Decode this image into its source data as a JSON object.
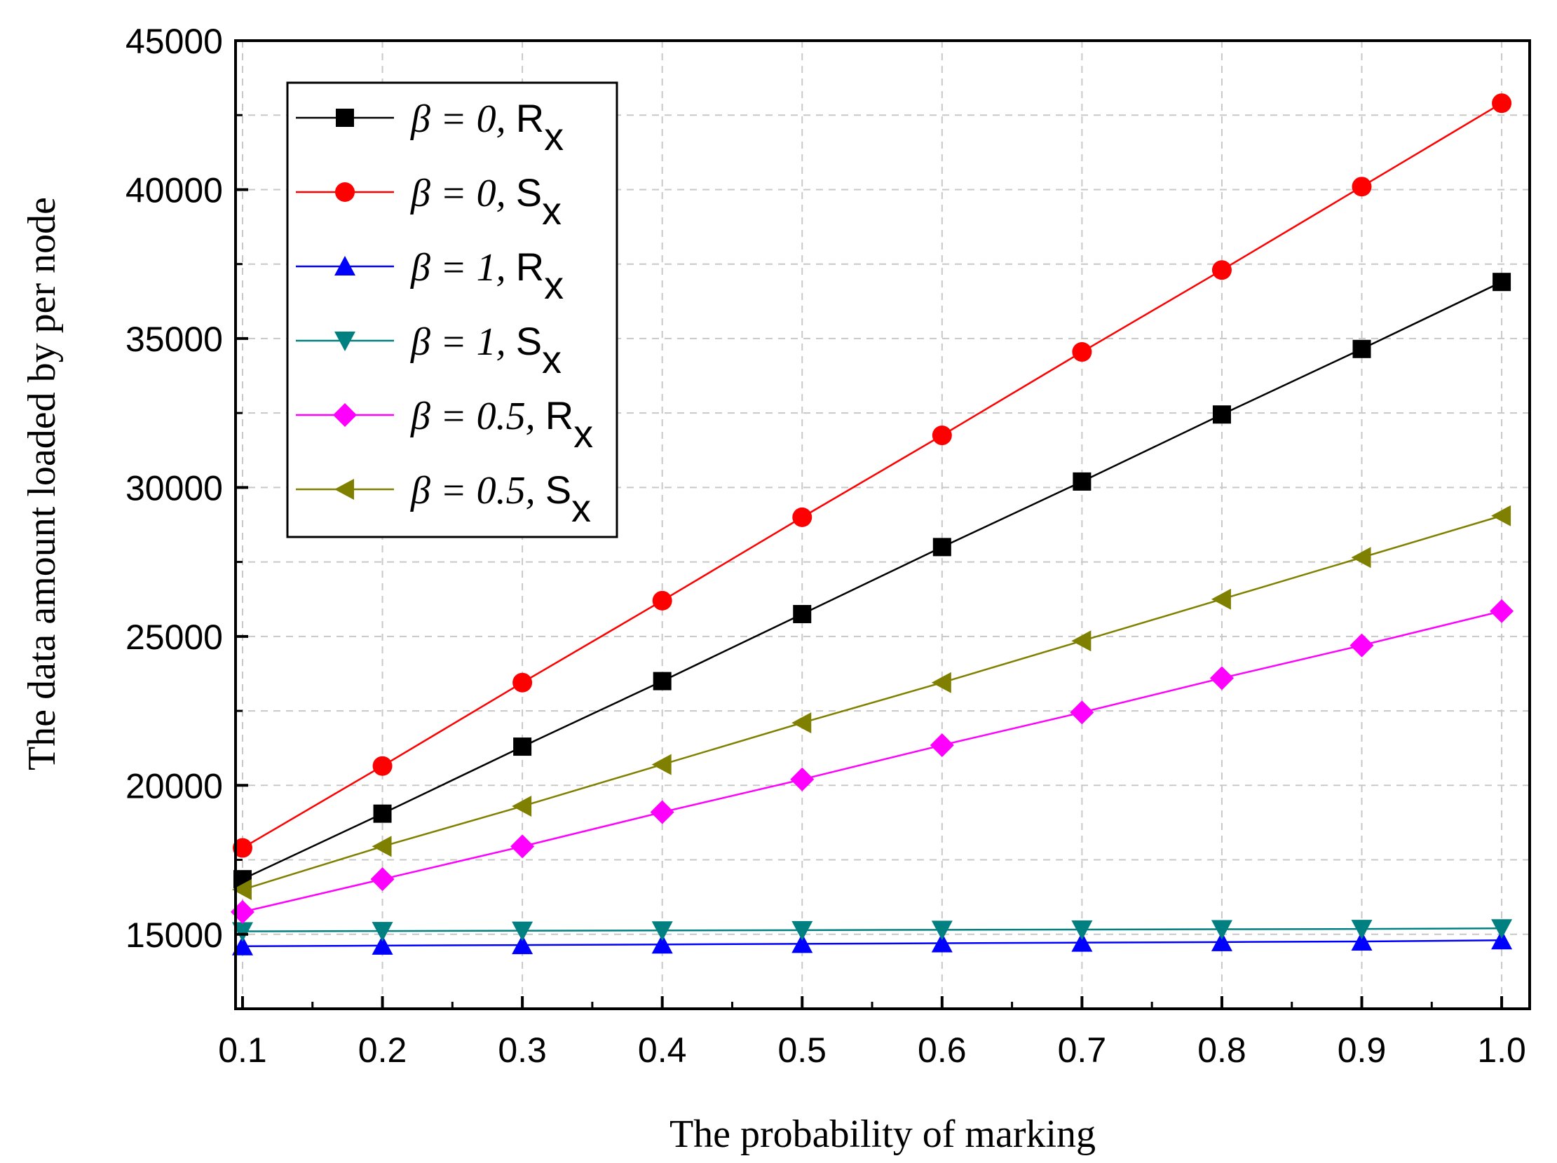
{
  "chart_data": {
    "type": "line",
    "title": "",
    "xlabel": "The probability of marking",
    "ylabel": "The data amount loaded by per node",
    "xlim": [
      0.095,
      1.02
    ],
    "ylim": [
      12500,
      45000
    ],
    "x": [
      0.1,
      0.2,
      0.3,
      0.4,
      0.5,
      0.6,
      0.7,
      0.8,
      0.9,
      1.0
    ],
    "x_tick_labels": [
      "0.1",
      "0.2",
      "0.3",
      "0.4",
      "0.5",
      "0.6",
      "0.7",
      "0.8",
      "0.9",
      "1.0"
    ],
    "y_ticks": [
      15000,
      20000,
      25000,
      30000,
      35000,
      40000,
      45000
    ],
    "y_tick_labels": [
      "15000",
      "20000",
      "25000",
      "30000",
      "35000",
      "40000",
      "45000"
    ],
    "grid": true,
    "legend_position": "top-left",
    "series": [
      {
        "name": "β = 0, Rx",
        "legend": {
          "prefix": "β = 0, ",
          "base": "R",
          "sub": "x"
        },
        "color": "#000000",
        "marker": "square",
        "values": [
          16850,
          19050,
          21300,
          23500,
          25750,
          28000,
          30200,
          32450,
          34650,
          36900
        ]
      },
      {
        "name": "β = 0, Sx",
        "legend": {
          "prefix": "β = 0, ",
          "base": "S",
          "sub": "x"
        },
        "color": "#ff0000",
        "marker": "circle",
        "values": [
          17900,
          20650,
          23450,
          26200,
          29000,
          31750,
          34550,
          37300,
          40100,
          42900
        ]
      },
      {
        "name": "β = 1, Rx",
        "legend": {
          "prefix": "β = 1, ",
          "base": "R",
          "sub": "x"
        },
        "color": "#0000ff",
        "marker": "triangle-up",
        "values": [
          14600,
          14620,
          14640,
          14660,
          14680,
          14700,
          14720,
          14740,
          14760,
          14800
        ]
      },
      {
        "name": "β = 1, Sx",
        "legend": {
          "prefix": "β = 1, ",
          "base": "S",
          "sub": "x"
        },
        "color": "#008080",
        "marker": "triangle-down",
        "values": [
          15100,
          15110,
          15120,
          15130,
          15140,
          15150,
          15160,
          15170,
          15180,
          15200
        ]
      },
      {
        "name": "β = 0.5, Rx",
        "legend": {
          "prefix": "β = 0.5, ",
          "base": "R",
          "sub": "x"
        },
        "color": "#ff00ff",
        "marker": "diamond",
        "values": [
          15750,
          16850,
          17950,
          19100,
          20200,
          21350,
          22450,
          23600,
          24700,
          25850
        ]
      },
      {
        "name": "β = 0.5, Sx",
        "legend": {
          "prefix": "β = 0.5, ",
          "base": "S",
          "sub": "x"
        },
        "color": "#808000",
        "marker": "triangle-left",
        "values": [
          16500,
          17950,
          19300,
          20700,
          22100,
          23450,
          24850,
          26250,
          27650,
          29050
        ]
      }
    ]
  }
}
